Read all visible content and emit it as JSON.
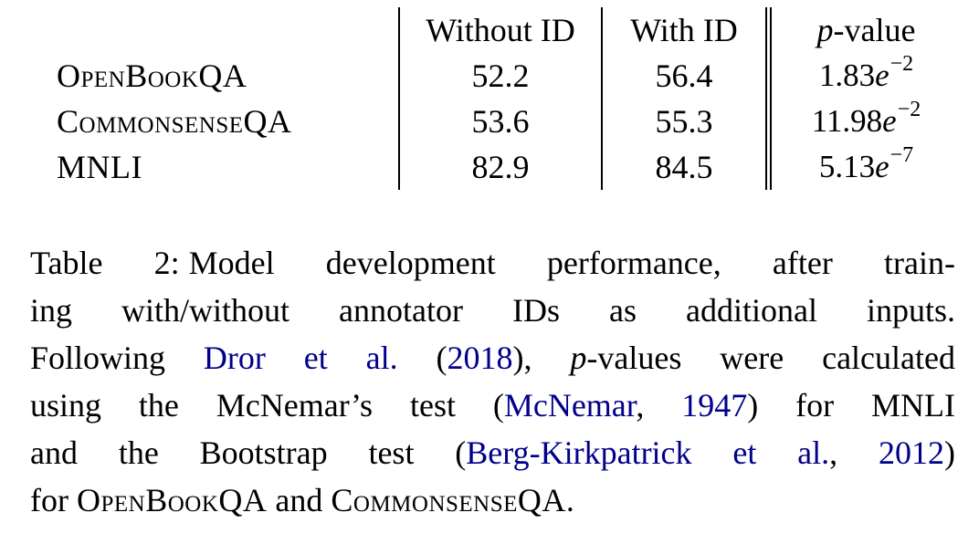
{
  "page": {
    "background_color": "#ffffff",
    "text_color": "#000000",
    "link_color": "#00008B"
  },
  "table": {
    "header": {
      "without": "Without ID",
      "with": "With ID",
      "p": "p",
      "p_rest": "-value"
    },
    "e": "e",
    "rows": [
      {
        "label": "OpenBookQA",
        "without_id": "52.2",
        "with_id": "56.4",
        "p_coeff": "1.83",
        "p_exp": "−2"
      },
      {
        "label": "CommonsenseQA",
        "without_id": "53.6",
        "with_id": "55.3",
        "p_coeff": "11.98",
        "p_exp": "−2"
      },
      {
        "label": "MNLI",
        "without_id": "82.9",
        "with_id": "84.5",
        "p_coeff": "5.13",
        "p_exp": "−7"
      }
    ]
  },
  "caption": {
    "label": "Table 2:",
    "l1_rest": "Model development performance, after train-",
    "l2": "ing with/without annotator IDs as additional inputs.",
    "l3": {
      "pre": "Following ",
      "cite": "Dror et al.",
      "paren_open": " (",
      "year": "2018",
      "paren_close": "), ",
      "p": "p",
      "rest": "-values were calculated"
    },
    "l4": {
      "pre": "using the McNemar’s test (",
      "cite": "McNemar",
      "comma": ", ",
      "year": "1947",
      "rest": ") for MNLI"
    },
    "l5": {
      "pre": "and the Bootstrap test (",
      "cite": "Berg-Kirkpatrick et al.",
      "comma": ", ",
      "year": "2012",
      "rest": ")"
    },
    "l6": {
      "pre": "for ",
      "dataset1": "OpenBookQA",
      "mid": " and ",
      "dataset2": "CommonsenseQA",
      "end": "."
    }
  }
}
